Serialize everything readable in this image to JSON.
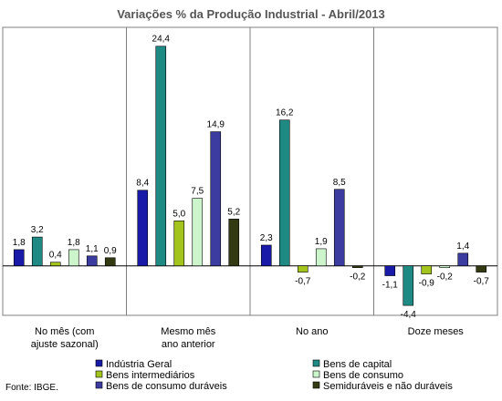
{
  "chart_data": {
    "type": "bar",
    "title": "Variações % da Produção Industrial - Abril/2013",
    "source": "Fonte: IBGE.",
    "categories": [
      [
        "No mês (com",
        "ajuste sazonal)"
      ],
      [
        "Mesmo mês",
        "ano anterior"
      ],
      [
        "No ano"
      ],
      [
        "Doze meses"
      ]
    ],
    "ylim": [
      -5.5,
      26.5
    ],
    "grid": false,
    "legend_position": "bottom",
    "series": [
      {
        "name": "Indústria Geral",
        "color": "#1a1aa8",
        "values": [
          1.8,
          8.4,
          2.3,
          -1.1
        ]
      },
      {
        "name": "Bens de capital",
        "color": "#1f8a83",
        "values": [
          3.2,
          24.4,
          16.2,
          -4.4
        ]
      },
      {
        "name": "Bens intermediários",
        "color": "#a3c41c",
        "values": [
          0.4,
          5.0,
          -0.7,
          -0.9
        ]
      },
      {
        "name": "Bens de consumo",
        "color": "#ccf5cc",
        "values": [
          1.8,
          7.5,
          1.9,
          -0.2
        ]
      },
      {
        "name": "Bens de consumo duráveis",
        "color": "#3c3ca0",
        "values": [
          1.1,
          14.9,
          8.5,
          1.4
        ]
      },
      {
        "name": "Semiduráveis e não duráveis",
        "color": "#333a12",
        "values": [
          0.9,
          5.2,
          -0.2,
          -0.7
        ]
      }
    ]
  }
}
